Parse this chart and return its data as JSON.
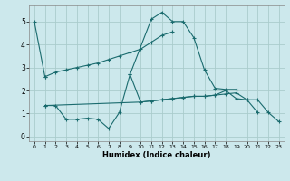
{
  "xlabel": "Humidex (Indice chaleur)",
  "background_color": "#cce8ec",
  "grid_color": "#aacccc",
  "line_color": "#1a6b6e",
  "xlim": [
    -0.5,
    23.5
  ],
  "ylim": [
    -0.2,
    5.7
  ],
  "xticks": [
    0,
    1,
    2,
    3,
    4,
    5,
    6,
    7,
    8,
    9,
    10,
    11,
    12,
    13,
    14,
    15,
    16,
    17,
    18,
    19,
    20,
    21,
    22,
    23
  ],
  "yticks": [
    0,
    1,
    2,
    3,
    4,
    5
  ],
  "line1_x": [
    0,
    1
  ],
  "line1_y": [
    5.0,
    2.6
  ],
  "line2_x": [
    1,
    2,
    3,
    4,
    5,
    6,
    7,
    8,
    9,
    10,
    11,
    12,
    13
  ],
  "line2_y": [
    2.6,
    2.8,
    2.9,
    3.0,
    3.1,
    3.2,
    3.35,
    3.5,
    3.65,
    3.8,
    4.1,
    4.4,
    4.55
  ],
  "line3_x": [
    9,
    11,
    12,
    13,
    14,
    15,
    16,
    17,
    18,
    19
  ],
  "line3_y": [
    2.7,
    5.1,
    5.4,
    5.0,
    5.0,
    4.3,
    2.9,
    2.1,
    2.05,
    2.05
  ],
  "line4_x": [
    1,
    2,
    3,
    4,
    5,
    6,
    7,
    8,
    9,
    10,
    11,
    12,
    13,
    14,
    15,
    16,
    17,
    18,
    19,
    20,
    21
  ],
  "line4_y": [
    1.35,
    1.35,
    0.75,
    0.75,
    0.8,
    0.75,
    0.35,
    1.05,
    2.7,
    1.5,
    1.55,
    1.6,
    1.65,
    1.7,
    1.75,
    1.75,
    1.8,
    2.0,
    1.65,
    1.6,
    1.05
  ],
  "line5_x": [
    1,
    10,
    11,
    12,
    13,
    14,
    15,
    16,
    17,
    18,
    19,
    20,
    21,
    22,
    23
  ],
  "line5_y": [
    1.35,
    1.5,
    1.55,
    1.6,
    1.65,
    1.7,
    1.75,
    1.75,
    1.8,
    1.85,
    1.9,
    1.6,
    1.6,
    1.05,
    0.65
  ]
}
